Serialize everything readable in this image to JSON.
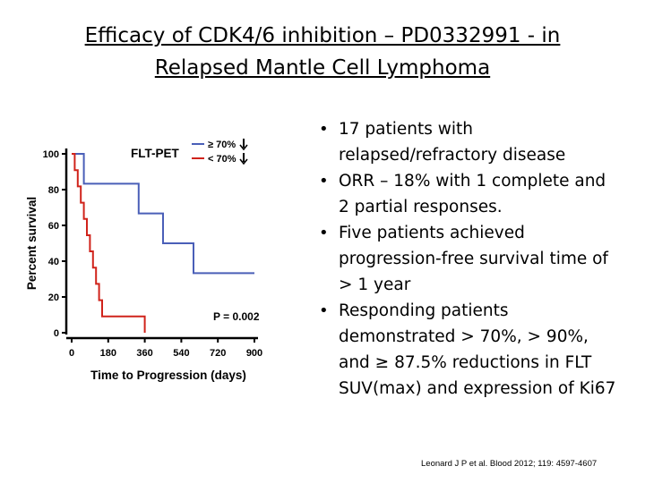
{
  "slide": {
    "title_line1": "Efficacy of CDK4/6 inhibition – PD0332991 - in",
    "title_line2": "Relapsed Mantle Cell Lymphoma",
    "bullets": [
      "17 patients with relapsed/refractory disease",
      "ORR – 18% with 1 complete and 2 partial responses.",
      "Five patients achieved progression-free survival time of > 1 year",
      "Responding patients demonstrated > 70%, > 90%, and ≥ 87.5% reductions in FLT SUV(max) and expression of Ki67"
    ],
    "citation": "Leonard J P et al. Blood 2012; 119: 4597-4607"
  },
  "chart_data": {
    "type": "line",
    "subtype": "kaplan-meier step",
    "title": "",
    "xlabel": "Time to Progression (days)",
    "ylabel": "Percent survival",
    "xlim": [
      0,
      900
    ],
    "ylim": [
      0,
      100
    ],
    "xticks": [
      "0",
      "180",
      "360",
      "540",
      "720",
      "900"
    ],
    "yticks": [
      "0",
      "20",
      "40",
      "60",
      "80",
      "100"
    ],
    "legend_title": "FLT-PET",
    "legend_position": "top-right",
    "annotation": "P = 0.002",
    "series": [
      {
        "name": "≥ 70%",
        "color": "#4a5fb8",
        "x": [
          0,
          60,
          60,
          330,
          330,
          450,
          450,
          600,
          600,
          900
        ],
        "y": [
          100,
          100,
          83.3,
          83.3,
          66.7,
          66.7,
          50,
          50,
          33.3,
          33.3
        ]
      },
      {
        "name": "< 70%",
        "color": "#d0231b",
        "x": [
          0,
          15,
          15,
          30,
          30,
          45,
          45,
          60,
          60,
          75,
          75,
          90,
          90,
          105,
          105,
          120,
          120,
          135,
          135,
          150,
          150,
          300,
          300,
          360,
          360
        ],
        "y": [
          100,
          100,
          90.9,
          90.9,
          81.8,
          81.8,
          72.7,
          72.7,
          63.6,
          63.6,
          54.5,
          54.5,
          45.5,
          45.5,
          36.4,
          36.4,
          27.3,
          27.3,
          18.2,
          18.2,
          9.1,
          9.1,
          9.1,
          9.1,
          0
        ]
      }
    ]
  }
}
